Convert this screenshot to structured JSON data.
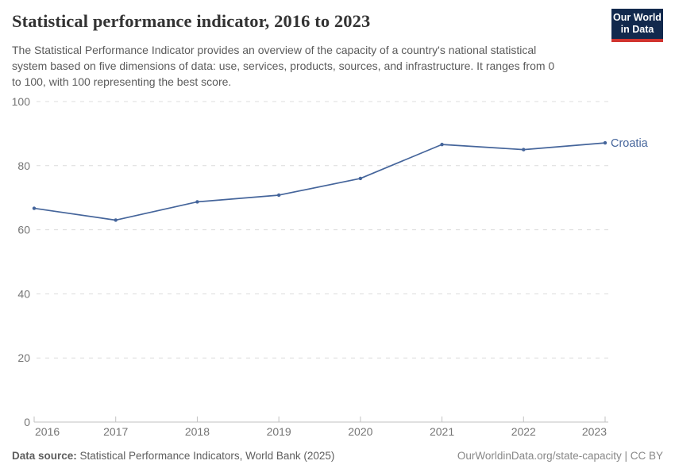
{
  "header": {
    "title": "Statistical performance indicator, 2016 to 2023",
    "subtitle_lines": [
      "The Statistical Performance Indicator provides an overview of the capacity of a country's national statistical",
      "system based on five dimensions of data: use, services, products, sources, and infrastructure. It ranges from 0",
      "to 100, with 100 representing the best score."
    ],
    "logo": {
      "line1": "Our World",
      "line2": "in Data",
      "bg_color": "#12294d",
      "stripe_color": "#d1342f"
    }
  },
  "chart_data": {
    "type": "line",
    "x": [
      2016,
      2017,
      2018,
      2019,
      2020,
      2021,
      2022,
      2023
    ],
    "series": [
      {
        "name": "Croatia",
        "color": "#45659b",
        "values": [
          66.7,
          63.0,
          68.7,
          70.8,
          76.0,
          86.6,
          85.0,
          87.1
        ]
      }
    ],
    "title": "Statistical performance indicator, 2016 to 2023",
    "xlabel": "",
    "ylabel": "",
    "ylim": [
      0,
      100
    ],
    "yticks": [
      0,
      20,
      40,
      60,
      80,
      100
    ],
    "grid": "horizontal-dashed",
    "legend_position": "end-of-line-label",
    "colors": {
      "gridline": "#dcdcdc",
      "axis": "#c2c2c2",
      "tick_label": "#757575"
    }
  },
  "footer": {
    "datasource_label": "Data source:",
    "datasource_text": " Statistical Performance Indicators, World Bank (2025)",
    "credit": "OurWorldinData.org/state-capacity | CC BY"
  }
}
